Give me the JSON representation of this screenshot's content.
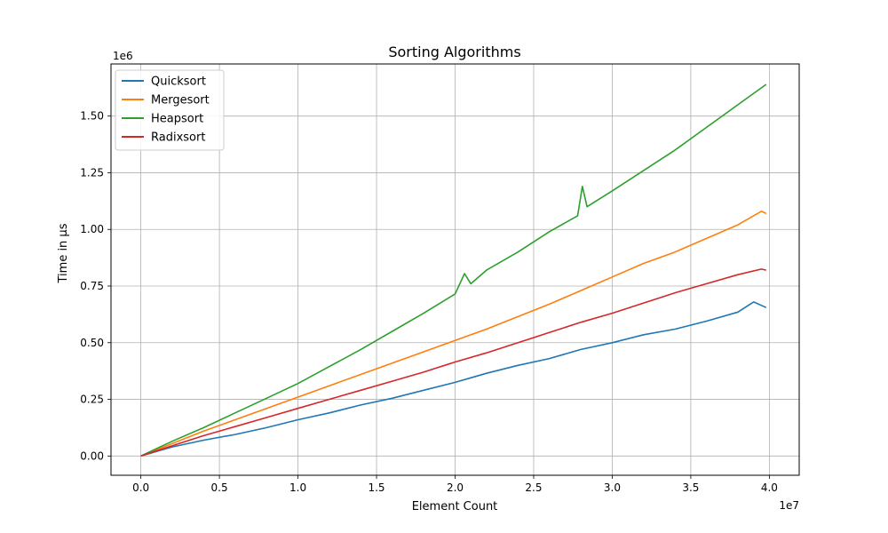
{
  "chart_data": {
    "type": "line",
    "title": "Sorting Algorithms",
    "xlabel": "Element Count",
    "ylabel": "Time in µs",
    "x_multiplier_label": "1e7",
    "y_multiplier_label": "1e6",
    "xlim": [
      -1900000.0,
      41900000.0
    ],
    "ylim": [
      -85000,
      1730000
    ],
    "xticks": [
      0,
      5000000,
      10000000,
      15000000,
      20000000,
      25000000,
      30000000,
      35000000,
      40000000
    ],
    "xtick_labels": [
      "0.0",
      "0.5",
      "1.0",
      "1.5",
      "2.0",
      "2.5",
      "3.0",
      "3.5",
      "4.0"
    ],
    "yticks": [
      0,
      250000,
      500000,
      750000,
      1000000,
      1250000,
      1500000
    ],
    "ytick_labels": [
      "0.00",
      "0.25",
      "0.50",
      "0.75",
      "1.00",
      "1.25",
      "1.50"
    ],
    "grid": true,
    "legend_position": "top-left",
    "series": [
      {
        "name": "Quicksort",
        "color": "#1f77b4",
        "x": [
          0,
          2000000,
          4000000,
          6000000,
          8000000,
          10000000,
          12000000,
          14000000,
          16000000,
          18000000,
          20000000,
          21000000,
          22000000,
          24000000,
          26000000,
          28000000,
          30000000,
          32000000,
          34000000,
          36000000,
          38000000,
          39000000,
          39800000
        ],
        "y": [
          0,
          40000,
          70000,
          95000,
          125000,
          160000,
          190000,
          225000,
          255000,
          290000,
          325000,
          345000,
          365000,
          400000,
          430000,
          470000,
          500000,
          535000,
          560000,
          595000,
          635000,
          680000,
          655000
        ]
      },
      {
        "name": "Mergesort",
        "color": "#ff7f0e",
        "x": [
          0,
          2000000,
          4000000,
          6000000,
          8000000,
          10000000,
          12000000,
          14000000,
          16000000,
          18000000,
          20000000,
          22000000,
          24000000,
          26000000,
          28000000,
          30000000,
          32000000,
          34000000,
          36000000,
          38000000,
          39500000,
          39800000
        ],
        "y": [
          0,
          55000,
          110000,
          160000,
          210000,
          260000,
          310000,
          360000,
          410000,
          460000,
          510000,
          560000,
          615000,
          670000,
          730000,
          790000,
          850000,
          900000,
          960000,
          1020000,
          1080000,
          1070000
        ]
      },
      {
        "name": "Heapsort",
        "color": "#2ca02c",
        "x": [
          0,
          2000000,
          4000000,
          6000000,
          8000000,
          10000000,
          12000000,
          14000000,
          16000000,
          18000000,
          20000000,
          20600000,
          21000000,
          22000000,
          24000000,
          26000000,
          27800000,
          28100000,
          28400000,
          30000000,
          32000000,
          34000000,
          36000000,
          38000000,
          39800000
        ],
        "y": [
          0,
          65000,
          125000,
          190000,
          255000,
          320000,
          395000,
          470000,
          550000,
          630000,
          715000,
          805000,
          760000,
          820000,
          900000,
          990000,
          1060000,
          1190000,
          1100000,
          1170000,
          1260000,
          1350000,
          1450000,
          1550000,
          1640000
        ]
      },
      {
        "name": "Radixsort",
        "color": "#d62728",
        "x": [
          0,
          2000000,
          4000000,
          6000000,
          8000000,
          10000000,
          12000000,
          14000000,
          16000000,
          18000000,
          20000000,
          22000000,
          24000000,
          26000000,
          28000000,
          30000000,
          32000000,
          34000000,
          36000000,
          38000000,
          39500000,
          39800000
        ],
        "y": [
          0,
          45000,
          90000,
          130000,
          170000,
          210000,
          250000,
          290000,
          330000,
          370000,
          415000,
          455000,
          500000,
          545000,
          590000,
          630000,
          675000,
          720000,
          760000,
          800000,
          825000,
          820000
        ]
      }
    ]
  }
}
